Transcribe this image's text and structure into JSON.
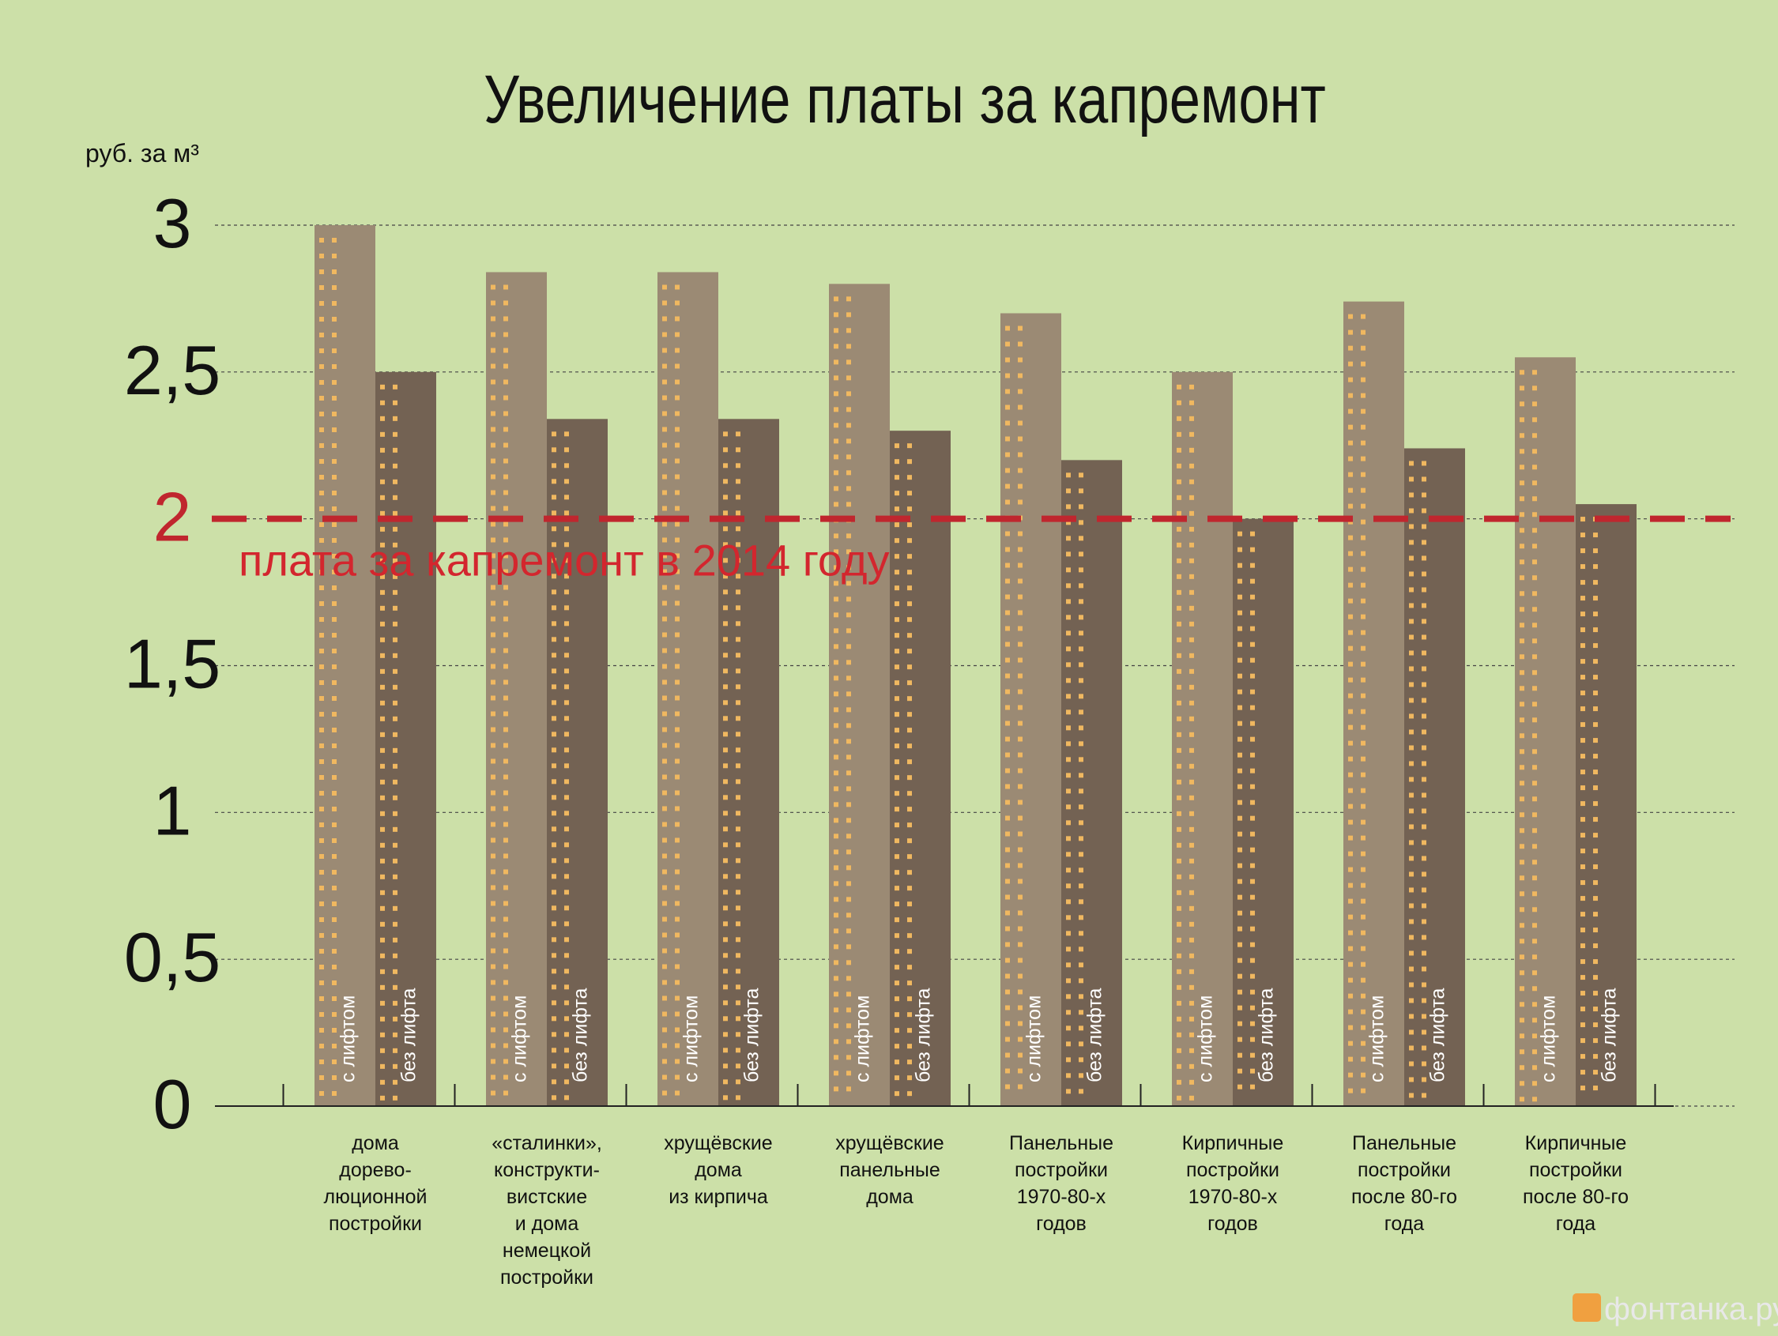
{
  "chart_data": {
    "type": "bar",
    "title": "Увеличение платы за капремонт",
    "ylabel": "руб. за м³",
    "ylim": [
      0,
      3
    ],
    "yticks": [
      {
        "value": 3,
        "label": "3"
      },
      {
        "value": 2.5,
        "label": "2,5"
      },
      {
        "value": 2,
        "label": "2"
      },
      {
        "value": 1.5,
        "label": "1,5"
      },
      {
        "value": 1,
        "label": "1"
      },
      {
        "value": 0.5,
        "label": "0,5"
      },
      {
        "value": 0,
        "label": "0"
      }
    ],
    "grid": true,
    "categories": [
      [
        "дома",
        "дорево-",
        "люционной",
        "постройки"
      ],
      [
        "«сталинки»,",
        "конструкти-",
        "вистские",
        "и дома",
        "немецкой",
        "постройки"
      ],
      [
        "хрущёвские",
        "дома",
        "из кирпича"
      ],
      [
        "хрущёвские",
        "панельные",
        "дома"
      ],
      [
        "Панельные",
        "постройки",
        "1970-80-х",
        "годов"
      ],
      [
        "Кирпичные",
        "постройки",
        "1970-80-х",
        "годов"
      ],
      [
        "Панельные",
        "постройки",
        "после 80-го",
        "года"
      ],
      [
        "Кирпичные",
        "постройки",
        "после 80-го",
        "года"
      ]
    ],
    "series": [
      {
        "name": "с лифтом",
        "color": "#9b8a74",
        "values": [
          3.0,
          2.84,
          2.84,
          2.8,
          2.7,
          2.5,
          2.74,
          2.55
        ]
      },
      {
        "name": "без лифта",
        "color": "#736253",
        "values": [
          2.5,
          2.34,
          2.34,
          2.3,
          2.2,
          2.0,
          2.24,
          2.05
        ]
      }
    ],
    "reference_line": {
      "value": 2,
      "label": "плата за капремонт в 2014 году",
      "color": "#c0262e"
    }
  },
  "branding": {
    "logo_text": "фонтанка.ру"
  },
  "colors": {
    "background": "#cce0a8",
    "window_dots": "#f0b860",
    "axis": "#333333"
  }
}
